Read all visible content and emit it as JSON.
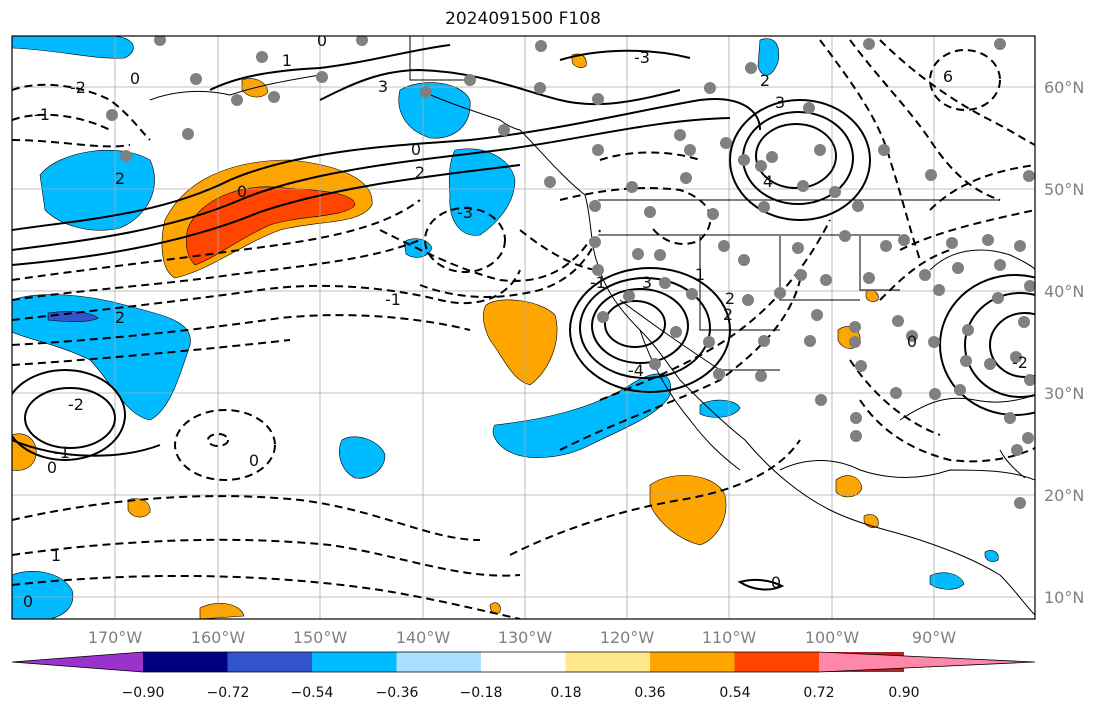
{
  "title": "2024091500 F108",
  "map": {
    "lon_labels": [
      "170°W",
      "160°W",
      "150°W",
      "140°W",
      "130°W",
      "120°W",
      "110°W",
      "100°W",
      "90°W"
    ],
    "lat_labels": [
      "60°N",
      "50°N",
      "40°N",
      "30°N",
      "20°N",
      "10°N"
    ],
    "contour_labels": [
      "0",
      "1",
      "0",
      "-1",
      "2",
      "-2",
      "0",
      "2",
      "0",
      "3",
      "2",
      "-3",
      "-1",
      "-1",
      "3",
      "2",
      "3",
      "-4",
      "4",
      "-3",
      "2",
      "-2",
      "0",
      "1",
      "0",
      "0",
      "0",
      "6",
      "-2",
      "0",
      "-1",
      "1",
      "2"
    ]
  },
  "colorbar": {
    "tick_labels": [
      "−0.90",
      "−0.72",
      "−0.54",
      "−0.36",
      "−0.18",
      "0.18",
      "0.36",
      "0.54",
      "0.72",
      "0.90"
    ],
    "colors": [
      "#9933cc",
      "#000080",
      "#3355cc",
      "#00bbff",
      "#aadfff",
      "#ffffff",
      "#ffe88a",
      "#ffa500",
      "#ff4500",
      "#b22222",
      "#ff88aa"
    ]
  }
}
